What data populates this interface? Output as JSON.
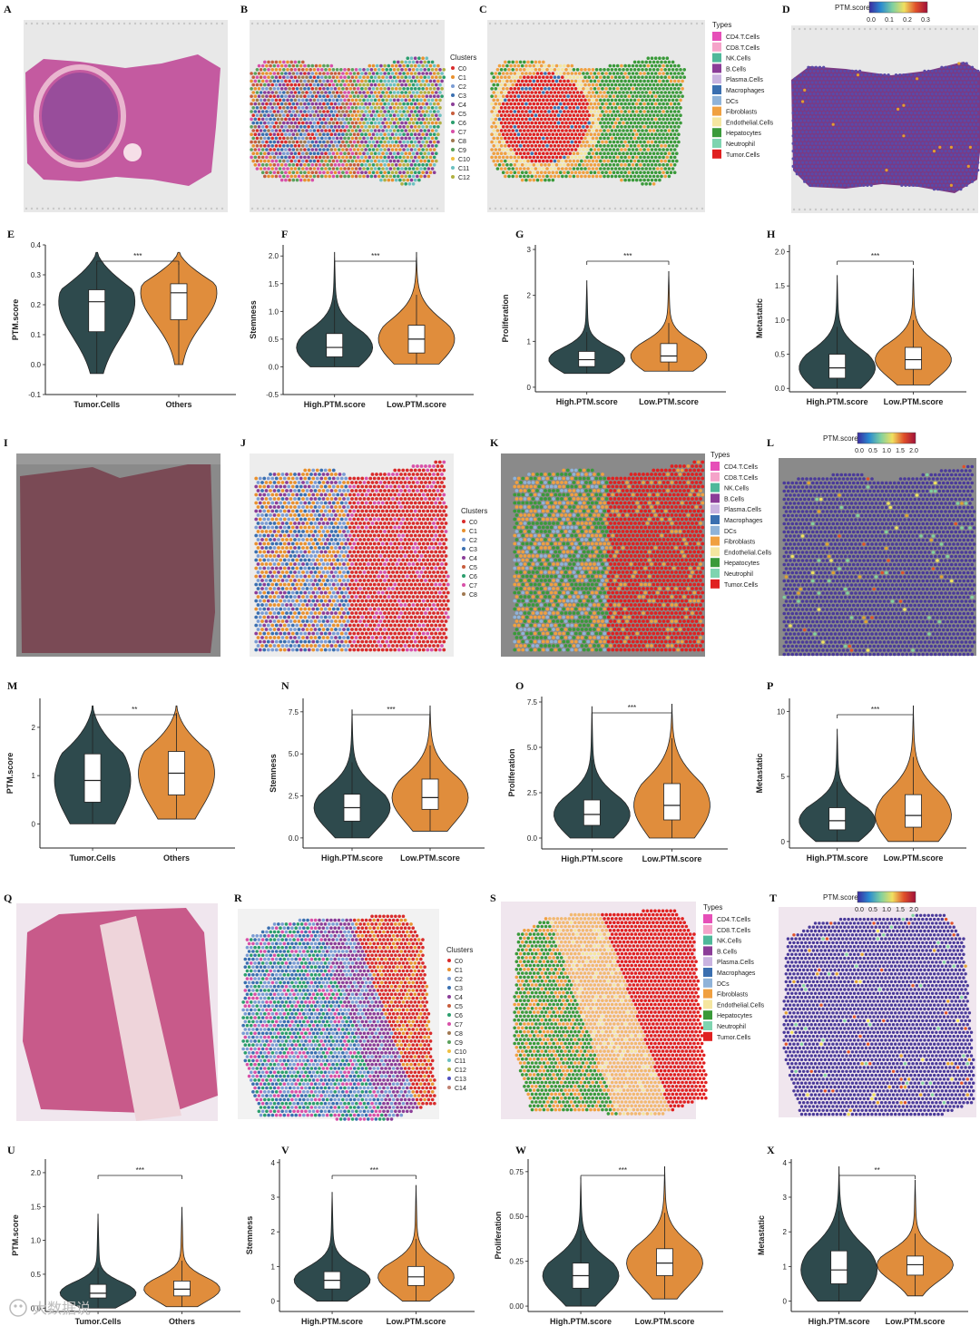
{
  "figure": {
    "panel_letters": [
      "A",
      "B",
      "C",
      "D",
      "E",
      "F",
      "G",
      "H",
      "I",
      "J",
      "K",
      "L",
      "M",
      "N",
      "O",
      "P",
      "Q",
      "R",
      "S",
      "T",
      "U",
      "V",
      "W",
      "X"
    ],
    "watermark_text": "大数据说"
  },
  "colors": {
    "dark": "#2e4a4d",
    "orange": "#e08d3c",
    "he_pink": "#c45aa0",
    "he_purple": "#7a3a84",
    "low_score": "#4a3a9a",
    "slide_bg": "#e8e8e8"
  },
  "clusters_legend": {
    "title": "Clusters",
    "set1": [
      "C0",
      "C1",
      "C2",
      "C3",
      "C4",
      "C5",
      "C6",
      "C7",
      "C8",
      "C9",
      "C10",
      "C11",
      "C12"
    ],
    "set2": [
      "C0",
      "C1",
      "C2",
      "C3",
      "C4",
      "C5",
      "C6",
      "C7",
      "C8"
    ],
    "set3": [
      "C0",
      "C1",
      "C2",
      "C3",
      "C4",
      "C5",
      "C6",
      "C7",
      "C8",
      "C9",
      "C10",
      "C11",
      "C12",
      "C13",
      "C14"
    ],
    "colors": [
      "#d92b2b",
      "#e8902e",
      "#7a9bd3",
      "#3a6fb0",
      "#8b3d98",
      "#c75c3c",
      "#2b9e6d",
      "#d84fa8",
      "#a07850",
      "#5aa05a",
      "#f0c040",
      "#6bc0c0",
      "#b0b040",
      "#5050c0",
      "#c08070"
    ]
  },
  "types_legend": {
    "title": "Types",
    "items": [
      {
        "name": "CD4.T.Cells",
        "color": "#e64fb8"
      },
      {
        "name": "CD8.T.Cells",
        "color": "#f5a3c9"
      },
      {
        "name": "NK.Cells",
        "color": "#4fb89a"
      },
      {
        "name": "B.Cells",
        "color": "#8b3d98"
      },
      {
        "name": "Plasma.Cells",
        "color": "#c9b3e0"
      },
      {
        "name": "Macrophages",
        "color": "#3a6fb0"
      },
      {
        "name": "DCs",
        "color": "#8fb3d9"
      },
      {
        "name": "Fibroblasts",
        "color": "#f0a040"
      },
      {
        "name": "Endothelial.Cells",
        "color": "#f5e6a0"
      },
      {
        "name": "Hepatocytes",
        "color": "#3a9a3a"
      },
      {
        "name": "Neutrophil",
        "color": "#7fd4b0"
      },
      {
        "name": "Tumor.Cells",
        "color": "#e02020"
      }
    ]
  },
  "score_legends": [
    {
      "title": "PTM.score",
      "ticks": [
        "0.0",
        "0.1",
        "0.2",
        "0.3"
      ]
    },
    {
      "title": "PTM.score",
      "ticks": [
        "0.0",
        "0.5",
        "1.0",
        "1.5",
        "2.0"
      ]
    },
    {
      "title": "PTM.score",
      "ticks": [
        "0.0",
        "0.5",
        "1.0",
        "1.5",
        "2.0"
      ]
    }
  ],
  "chart_data": [
    {
      "panel": "E",
      "type": "violin",
      "ylabel": "PTM.score",
      "categories": [
        "Tumor.Cells",
        "Others"
      ],
      "yticks": [
        "-0.1",
        "0.0",
        "0.1",
        "0.2",
        "0.3",
        "0.4"
      ],
      "ylim": [
        -0.1,
        0.4
      ],
      "box": [
        {
          "q1": 0.11,
          "median": 0.21,
          "q3": 0.25,
          "wlo": -0.03,
          "whi": 0.34
        },
        {
          "q1": 0.15,
          "median": 0.24,
          "q3": 0.27,
          "wlo": 0.0,
          "whi": 0.34
        }
      ],
      "significance": "***"
    },
    {
      "panel": "F",
      "type": "violin",
      "ylabel": "Stemness",
      "categories": [
        "High.PTM.score",
        "Low.PTM.score"
      ],
      "yticks": [
        "-0.5",
        "0.0",
        "0.5",
        "1.0",
        "1.5",
        "2.0"
      ],
      "ylim": [
        -0.5,
        2.2
      ],
      "box": [
        {
          "q1": 0.18,
          "median": 0.35,
          "q3": 0.6,
          "wlo": 0.0,
          "whi": 1.2
        },
        {
          "q1": 0.25,
          "median": 0.5,
          "q3": 0.75,
          "wlo": 0.05,
          "whi": 1.3
        }
      ],
      "significance": "***"
    },
    {
      "panel": "G",
      "type": "violin",
      "ylabel": "Proliferation",
      "categories": [
        "High.PTM.score",
        "Low.PTM.score"
      ],
      "yticks": [
        "0",
        "1",
        "2",
        "3"
      ],
      "ylim": [
        -0.1,
        3.1
      ],
      "box": [
        {
          "q1": 0.45,
          "median": 0.6,
          "q3": 0.78,
          "wlo": 0.3,
          "whi": 1.2
        },
        {
          "q1": 0.55,
          "median": 0.68,
          "q3": 0.95,
          "wlo": 0.35,
          "whi": 1.4
        }
      ],
      "significance": "***"
    },
    {
      "panel": "H",
      "type": "violin",
      "ylabel": "Metastatic",
      "categories": [
        "High.PTM.score",
        "Low.PTM.score"
      ],
      "yticks": [
        "0.0",
        "0.5",
        "1.0",
        "1.5",
        "2.0"
      ],
      "ylim": [
        -0.05,
        2.1
      ],
      "box": [
        {
          "q1": 0.15,
          "median": 0.3,
          "q3": 0.5,
          "wlo": 0.0,
          "whi": 0.9
        },
        {
          "q1": 0.28,
          "median": 0.42,
          "q3": 0.6,
          "wlo": 0.05,
          "whi": 1.0
        }
      ],
      "significance": "***"
    },
    {
      "panel": "M",
      "type": "violin",
      "ylabel": "PTM.score",
      "categories": [
        "Tumor.Cells",
        "Others"
      ],
      "yticks": [
        "0",
        "1",
        "2"
      ],
      "ylim": [
        -0.5,
        2.6
      ],
      "box": [
        {
          "q1": 0.45,
          "median": 0.9,
          "q3": 1.45,
          "wlo": 0.0,
          "whi": 2.2
        },
        {
          "q1": 0.6,
          "median": 1.05,
          "q3": 1.5,
          "wlo": 0.1,
          "whi": 2.3
        }
      ],
      "significance": "**"
    },
    {
      "panel": "N",
      "type": "violin",
      "ylabel": "Stemness",
      "categories": [
        "High.PTM.score",
        "Low.PTM.score"
      ],
      "yticks": [
        "0.0",
        "2.5",
        "5.0",
        "7.5"
      ],
      "ylim": [
        -0.6,
        8.3
      ],
      "box": [
        {
          "q1": 1.0,
          "median": 1.8,
          "q3": 2.6,
          "wlo": 0.0,
          "whi": 4.5
        },
        {
          "q1": 1.7,
          "median": 2.4,
          "q3": 3.5,
          "wlo": 0.4,
          "whi": 5.5
        }
      ],
      "significance": "***"
    },
    {
      "panel": "O",
      "type": "violin",
      "ylabel": "Proliferation",
      "categories": [
        "High.PTM.score",
        "Low.PTM.score"
      ],
      "yticks": [
        "0.0",
        "2.5",
        "5.0",
        "7.5"
      ],
      "ylim": [
        -0.6,
        7.8
      ],
      "box": [
        {
          "q1": 0.7,
          "median": 1.3,
          "q3": 2.1,
          "wlo": 0.0,
          "whi": 4.3
        },
        {
          "q1": 1.0,
          "median": 1.8,
          "q3": 3.0,
          "wlo": 0.0,
          "whi": 5.5
        }
      ],
      "significance": "***"
    },
    {
      "panel": "P",
      "type": "violin",
      "ylabel": "Metastatic",
      "categories": [
        "High.PTM.score",
        "Low.PTM.score"
      ],
      "yticks": [
        "0",
        "5",
        "10"
      ],
      "ylim": [
        -0.5,
        11
      ],
      "box": [
        {
          "q1": 0.9,
          "median": 1.6,
          "q3": 2.6,
          "wlo": 0.0,
          "whi": 4.6
        },
        {
          "q1": 1.1,
          "median": 2.0,
          "q3": 3.6,
          "wlo": 0.0,
          "whi": 6.5
        }
      ],
      "significance": "***"
    },
    {
      "panel": "U",
      "type": "violin",
      "ylabel": "PTM.score",
      "categories": [
        "Tumor.Cells",
        "Others"
      ],
      "yticks": [
        "0.0",
        "0.5",
        "1.0",
        "1.5",
        "2.0"
      ],
      "ylim": [
        -0.05,
        2.2
      ],
      "box": [
        {
          "q1": 0.15,
          "median": 0.22,
          "q3": 0.35,
          "wlo": 0.0,
          "whi": 0.6
        },
        {
          "q1": 0.18,
          "median": 0.28,
          "q3": 0.4,
          "wlo": 0.02,
          "whi": 0.7
        }
      ],
      "significance": "***"
    },
    {
      "panel": "V",
      "type": "violin",
      "ylabel": "Stemness",
      "categories": [
        "High.PTM.score",
        "Low.PTM.score"
      ],
      "yticks": [
        "0",
        "1",
        "2",
        "3",
        "4"
      ],
      "ylim": [
        -0.3,
        4.1
      ],
      "box": [
        {
          "q1": 0.35,
          "median": 0.6,
          "q3": 0.85,
          "wlo": 0.0,
          "whi": 1.6
        },
        {
          "q1": 0.45,
          "median": 0.7,
          "q3": 1.0,
          "wlo": 0.0,
          "whi": 1.8
        }
      ],
      "significance": "***"
    },
    {
      "panel": "W",
      "type": "violin",
      "ylabel": "Proliferation",
      "categories": [
        "High.PTM.score",
        "Low.PTM.score"
      ],
      "yticks": [
        "0.00",
        "0.25",
        "0.50",
        "0.75"
      ],
      "ylim": [
        -0.03,
        0.82
      ],
      "box": [
        {
          "q1": 0.1,
          "median": 0.17,
          "q3": 0.24,
          "wlo": 0.0,
          "whi": 0.42
        },
        {
          "q1": 0.17,
          "median": 0.24,
          "q3": 0.32,
          "wlo": 0.04,
          "whi": 0.52
        }
      ],
      "significance": "***"
    },
    {
      "panel": "X",
      "type": "violin",
      "ylabel": "Metastatic",
      "categories": [
        "High.PTM.score",
        "Low.PTM.score"
      ],
      "yticks": [
        "0",
        "1",
        "2",
        "3",
        "4"
      ],
      "ylim": [
        -0.3,
        4.1
      ],
      "box": [
        {
          "q1": 0.5,
          "median": 0.9,
          "q3": 1.45,
          "wlo": 0.0,
          "whi": 2.6
        },
        {
          "q1": 0.75,
          "median": 1.05,
          "q3": 1.3,
          "wlo": 0.15,
          "whi": 1.95
        }
      ],
      "significance": "**"
    }
  ]
}
